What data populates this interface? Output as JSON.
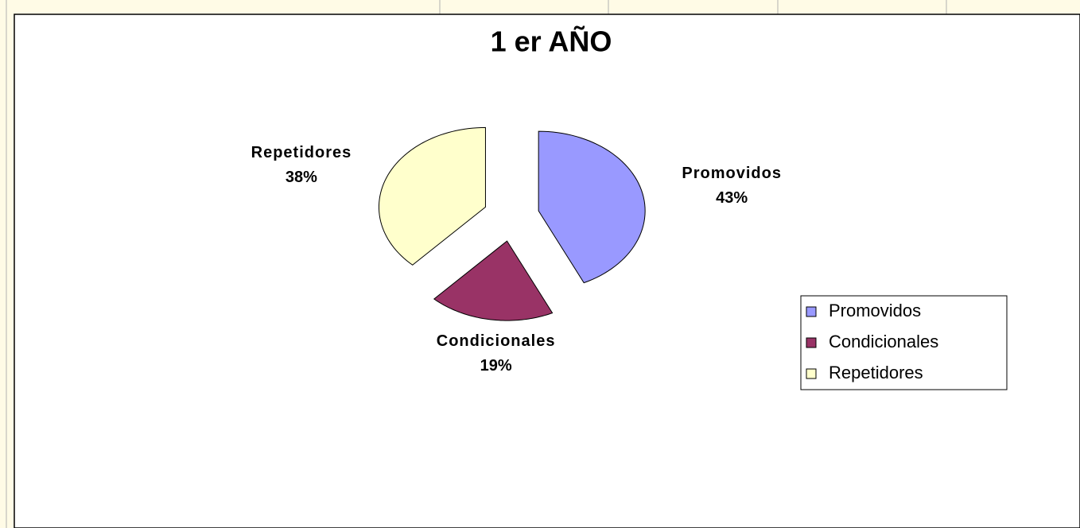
{
  "chart_data": {
    "type": "pie",
    "title": "1 er AÑO",
    "categories": [
      "Promovidos",
      "Condicionales",
      "Repetidores"
    ],
    "values": [
      43,
      19,
      38
    ],
    "value_labels": [
      "43%",
      "19%",
      "38%"
    ],
    "colors": [
      "#9999ff",
      "#993366",
      "#ffffcc"
    ],
    "legend": "right"
  }
}
